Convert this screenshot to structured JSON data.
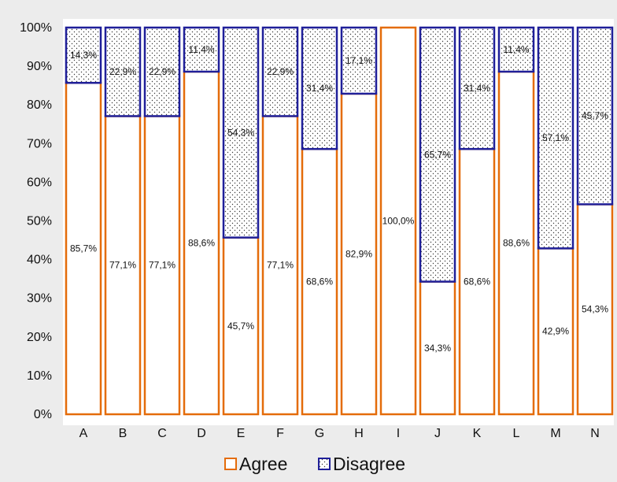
{
  "chart_data": {
    "type": "bar",
    "stacked": true,
    "categories": [
      "A",
      "B",
      "C",
      "D",
      "E",
      "F",
      "G",
      "H",
      "I",
      "J",
      "K",
      "L",
      "M",
      "N"
    ],
    "series": [
      {
        "name": "Agree",
        "color": "#e46c0a",
        "fill": "#ffffff",
        "values": [
          85.7,
          77.1,
          77.1,
          88.6,
          45.7,
          77.1,
          68.6,
          82.9,
          100.0,
          34.3,
          68.6,
          88.6,
          42.9,
          54.3
        ],
        "labels": [
          "85,7%",
          "77,1%",
          "77,1%",
          "88,6%",
          "45,7%",
          "77,1%",
          "68,6%",
          "82,9%",
          "100,0%",
          "34,3%",
          "68,6%",
          "88,6%",
          "42,9%",
          "54,3%"
        ]
      },
      {
        "name": "Disagree",
        "color": "#1f1f99",
        "fill": "dotted",
        "values": [
          14.3,
          22.9,
          22.9,
          11.4,
          54.3,
          22.9,
          31.4,
          17.1,
          0,
          65.7,
          31.4,
          11.4,
          57.1,
          45.7
        ],
        "labels": [
          "14,3%",
          "22,9%",
          "22,9%",
          "11,4%",
          "54,3%",
          "22,9%",
          "31,4%",
          "17,1%",
          "",
          "65,7%",
          "31,4%",
          "11,4%",
          "57,1%",
          "45,7%"
        ]
      }
    ],
    "y_ticks": [
      "0%",
      "10%",
      "20%",
      "30%",
      "40%",
      "50%",
      "60%",
      "70%",
      "80%",
      "90%",
      "100%"
    ],
    "ylim": [
      0,
      100
    ],
    "grid": false,
    "legend_position": "bottom",
    "title": "",
    "xlabel": "",
    "ylabel": ""
  }
}
